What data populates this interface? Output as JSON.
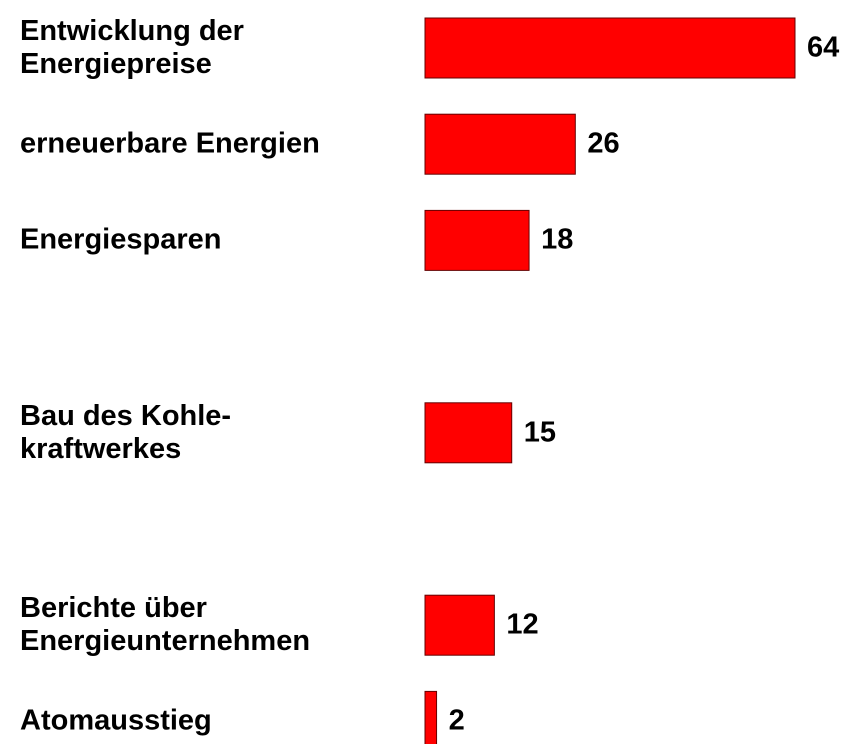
{
  "chart_data": {
    "type": "bar",
    "orientation": "horizontal",
    "categories": [
      "Entwicklung der\nEnergiepreise",
      "erneuerbare Energien",
      "Energiesparen",
      null,
      "Bau des Kohle-\nkraftwerkes",
      null,
      "Berichte über\nEnergieunternehmen",
      "Atomausstieg"
    ],
    "values": [
      64,
      26,
      18,
      null,
      15,
      null,
      12,
      2
    ],
    "color": "#ff0000"
  }
}
